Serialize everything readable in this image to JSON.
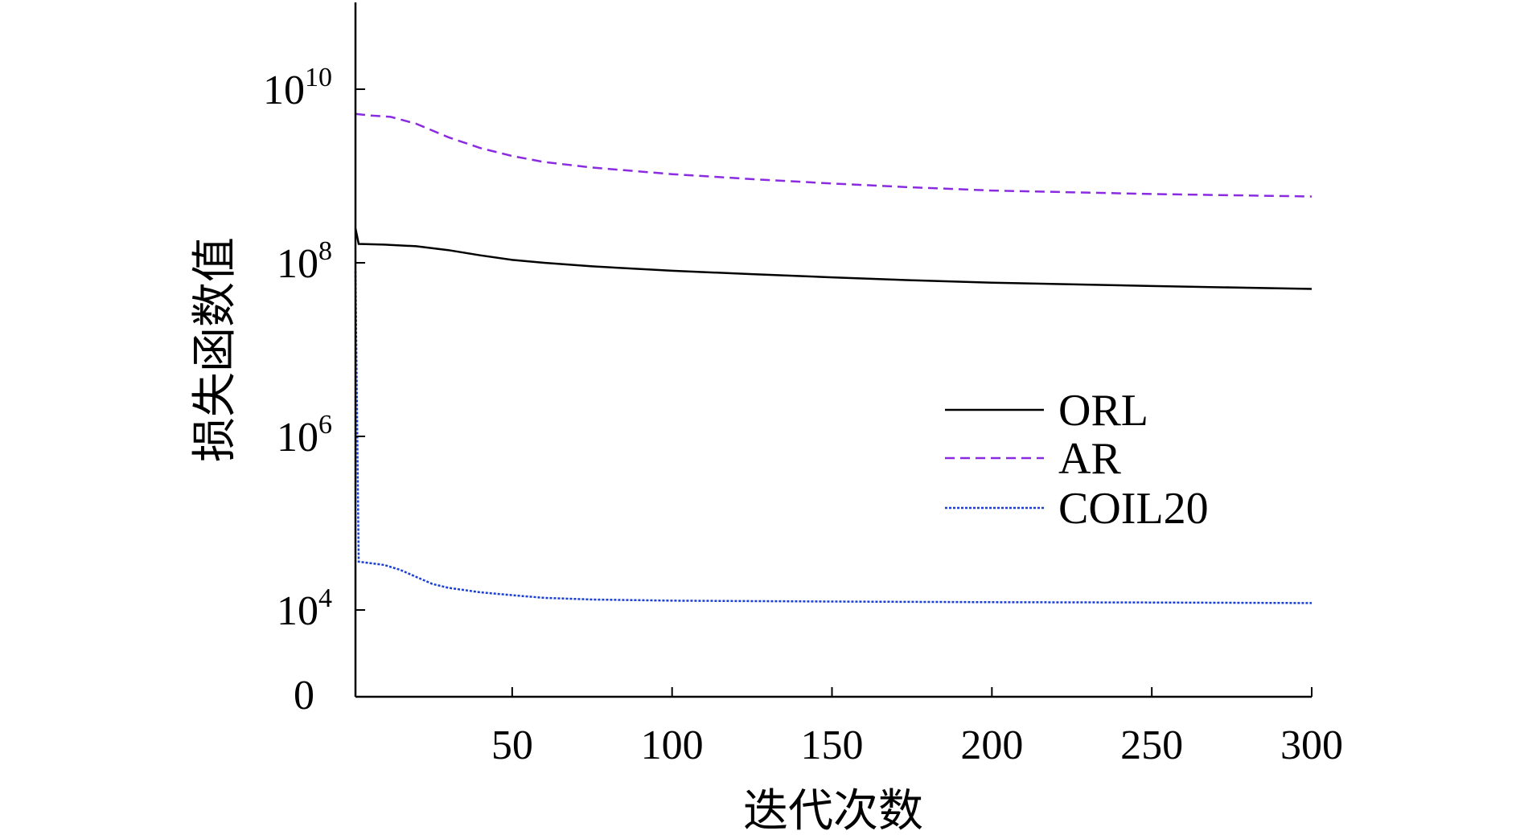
{
  "chart_data": {
    "type": "line",
    "xlabel": "迭代次数",
    "ylabel": "损失函数值",
    "y_scale": "log",
    "xlim": [
      1,
      300
    ],
    "ylim": [
      1000,
      100000000000
    ],
    "x_ticks": [
      {
        "value": 50,
        "label": "50"
      },
      {
        "value": 100,
        "label": "100"
      },
      {
        "value": 150,
        "label": "150"
      },
      {
        "value": 200,
        "label": "200"
      },
      {
        "value": 250,
        "label": "250"
      },
      {
        "value": 300,
        "label": "300"
      }
    ],
    "y_ticks": [
      {
        "value": 10000,
        "base": "10",
        "exp": "4"
      },
      {
        "value": 1000000,
        "base": "10",
        "exp": "6"
      },
      {
        "value": 100000000,
        "base": "10",
        "exp": "8"
      },
      {
        "value": 10000000000,
        "base": "10",
        "exp": "10"
      }
    ],
    "y_zero_label": "0",
    "legend_position": "center-right",
    "series": [
      {
        "name": "ORL",
        "color": "#000000",
        "dash": "solid",
        "points": [
          [
            1,
            250000000
          ],
          [
            2,
            165000000
          ],
          [
            10,
            162000000
          ],
          [
            20,
            155000000
          ],
          [
            30,
            140000000
          ],
          [
            40,
            122000000
          ],
          [
            50,
            108000000
          ],
          [
            60,
            100000000
          ],
          [
            75,
            91000000
          ],
          [
            100,
            81000000
          ],
          [
            125,
            74000000
          ],
          [
            150,
            68000000
          ],
          [
            175,
            63000000
          ],
          [
            200,
            59000000
          ],
          [
            250,
            54000000
          ],
          [
            300,
            50000000
          ]
        ]
      },
      {
        "name": "AR",
        "color": "#8a2be2",
        "dash": "dashed",
        "points": [
          [
            1,
            5200000000
          ],
          [
            5,
            5000000000
          ],
          [
            12,
            4800000000
          ],
          [
            20,
            4000000000
          ],
          [
            30,
            2800000000
          ],
          [
            40,
            2100000000
          ],
          [
            50,
            1700000000
          ],
          [
            60,
            1450000000
          ],
          [
            75,
            1250000000
          ],
          [
            100,
            1050000000
          ],
          [
            125,
            920000000
          ],
          [
            150,
            820000000
          ],
          [
            175,
            740000000
          ],
          [
            200,
            680000000
          ],
          [
            250,
            620000000
          ],
          [
            300,
            580000000
          ]
        ]
      },
      {
        "name": "COIL20",
        "color": "#1a3fd6",
        "dash": "dotted",
        "points": [
          [
            1,
            80000000
          ],
          [
            2,
            36000
          ],
          [
            10,
            33000
          ],
          [
            15,
            29000
          ],
          [
            20,
            24000
          ],
          [
            25,
            20000
          ],
          [
            30,
            18000
          ],
          [
            40,
            16000
          ],
          [
            50,
            14800
          ],
          [
            60,
            13800
          ],
          [
            75,
            13200
          ],
          [
            100,
            12800
          ],
          [
            150,
            12500
          ],
          [
            200,
            12300
          ],
          [
            250,
            12200
          ],
          [
            300,
            12000
          ]
        ]
      }
    ]
  }
}
